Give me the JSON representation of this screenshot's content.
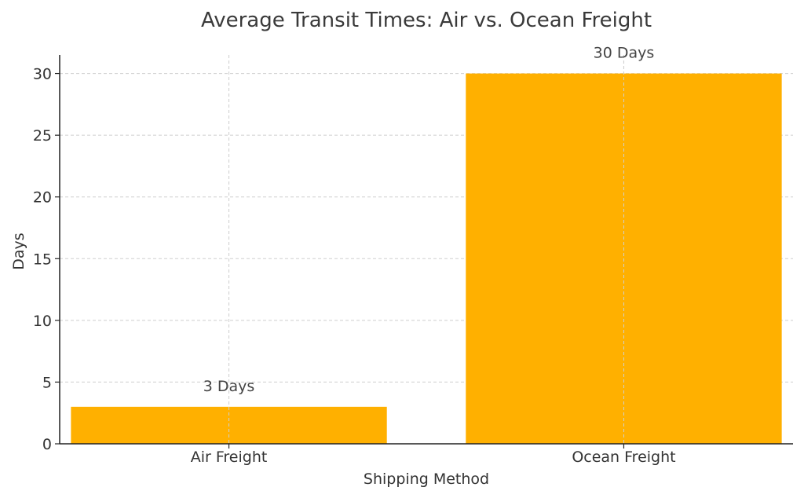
{
  "chart_data": {
    "type": "bar",
    "title": "Average Transit Times: Air vs. Ocean Freight",
    "xlabel": "Shipping Method",
    "ylabel": "Days",
    "categories": [
      "Air Freight",
      "Ocean Freight"
    ],
    "values": [
      3,
      30
    ],
    "data_labels": [
      "3 Days",
      "30 Days"
    ],
    "ylim": [
      0,
      31.5
    ],
    "yticks": [
      0,
      5,
      10,
      15,
      20,
      25,
      30
    ],
    "grid": true,
    "bar_color": "#FFB000"
  }
}
